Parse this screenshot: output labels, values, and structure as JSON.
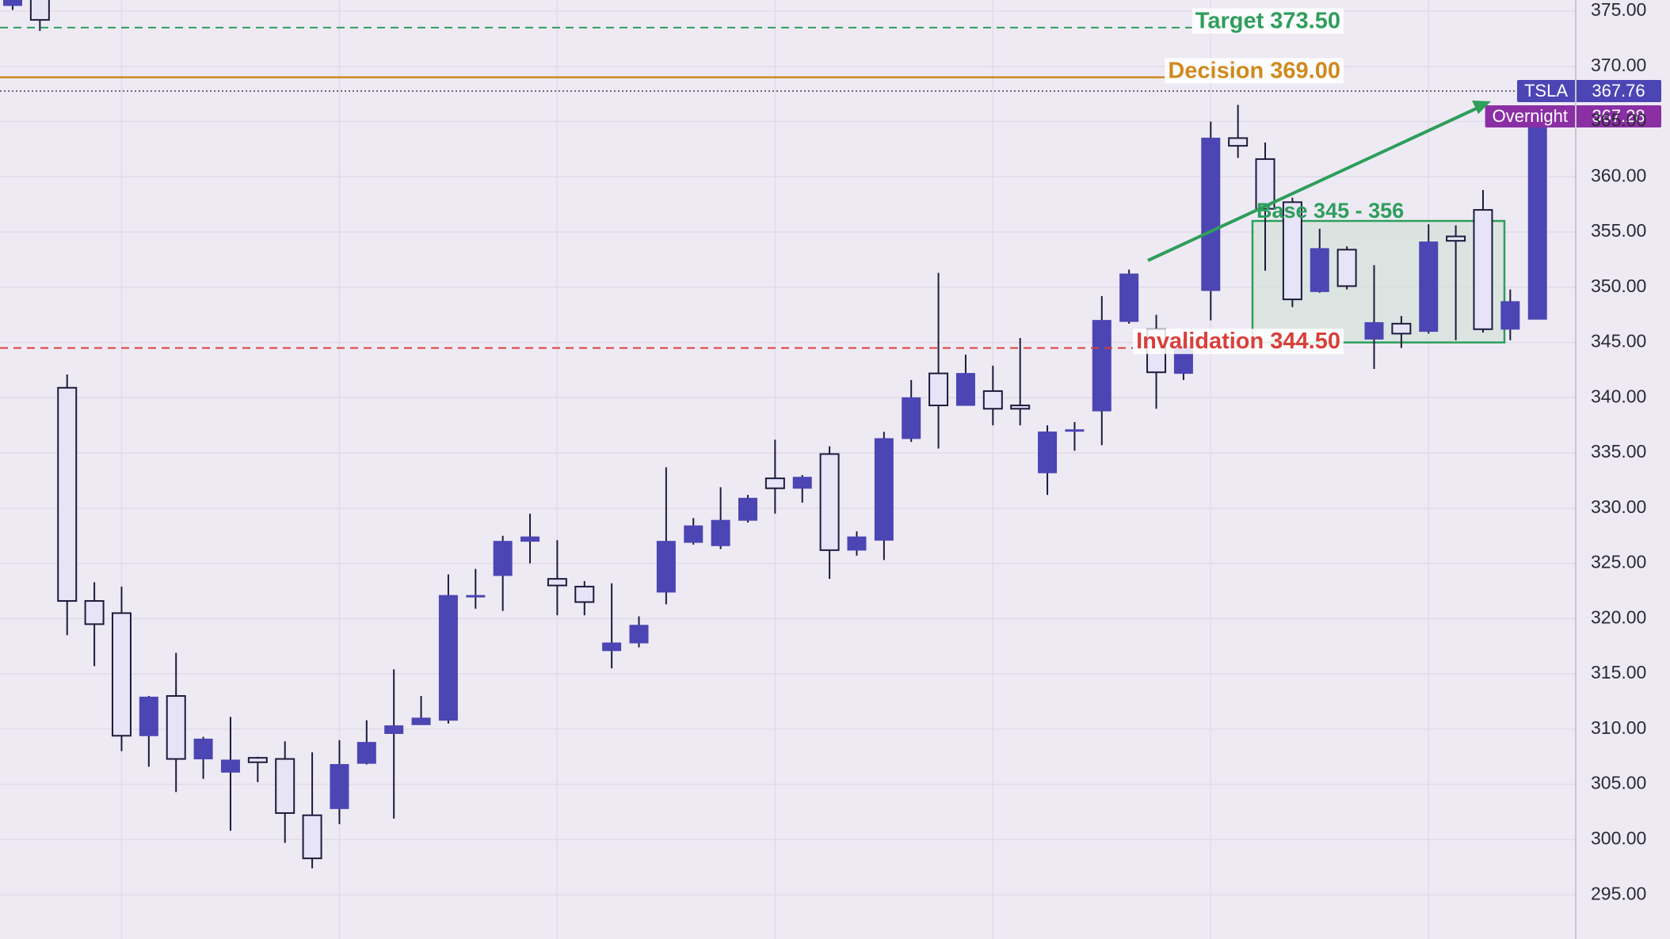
{
  "chart_data": {
    "type": "candlestick",
    "open": [
      375.5,
      376.5,
      340.9,
      321.6,
      320.5,
      309.4,
      313.0,
      307.3,
      306.1,
      307.4,
      307.3,
      302.2,
      302.8,
      306.9,
      309.6,
      310.4,
      310.8,
      322.0,
      323.9,
      327.0,
      323.6,
      322.9,
      317.1,
      317.8,
      322.4,
      326.9,
      326.6,
      328.9,
      332.7,
      331.8,
      334.9,
      326.2,
      327.1,
      336.3,
      342.2,
      339.3,
      340.6,
      339.3,
      333.2,
      337.0,
      338.8,
      346.9,
      346.2,
      342.2,
      349.7,
      363.5,
      361.6,
      357.7,
      349.6,
      353.4,
      345.3,
      346.7,
      346.0,
      354.6,
      357.0,
      346.2,
      347.1
    ],
    "high": [
      376.5,
      376.8,
      342.1,
      323.3,
      322.9,
      313.0,
      316.9,
      309.3,
      311.1,
      307.5,
      308.9,
      307.9,
      309.0,
      310.8,
      315.4,
      313.0,
      324.0,
      324.5,
      327.5,
      329.5,
      327.1,
      323.4,
      323.2,
      320.2,
      333.7,
      329.1,
      331.9,
      331.2,
      336.2,
      333.0,
      335.6,
      327.9,
      336.9,
      341.6,
      351.3,
      343.9,
      342.9,
      345.4,
      337.5,
      337.8,
      349.2,
      351.6,
      347.5,
      345.3,
      365.0,
      366.5,
      363.1,
      358.1,
      355.3,
      353.7,
      352.0,
      347.4,
      355.7,
      355.6,
      358.8,
      349.8,
      365.7
    ],
    "low": [
      375.1,
      373.2,
      318.5,
      315.7,
      308.0,
      306.6,
      304.3,
      305.5,
      300.8,
      305.2,
      299.7,
      297.4,
      301.4,
      306.8,
      301.9,
      310.4,
      310.5,
      320.9,
      320.7,
      325.0,
      320.3,
      320.3,
      315.5,
      317.4,
      321.3,
      326.7,
      326.3,
      328.7,
      329.5,
      330.5,
      323.6,
      325.7,
      325.3,
      336.0,
      335.4,
      339.3,
      337.5,
      337.5,
      331.2,
      335.2,
      335.7,
      346.7,
      339.0,
      341.6,
      347.0,
      361.7,
      351.5,
      348.2,
      349.5,
      349.8,
      342.6,
      344.5,
      345.8,
      345.2,
      345.9,
      345.2,
      347.1
    ],
    "close": [
      376.0,
      374.2,
      321.6,
      319.5,
      309.4,
      312.9,
      307.3,
      309.1,
      307.2,
      307.0,
      302.4,
      298.3,
      306.8,
      308.8,
      310.3,
      311.0,
      322.1,
      322.1,
      327.0,
      327.4,
      323.0,
      321.5,
      317.8,
      319.4,
      327.0,
      328.4,
      328.9,
      330.9,
      331.8,
      332.8,
      326.2,
      327.4,
      336.3,
      340.0,
      339.3,
      342.2,
      339.0,
      339.0,
      336.9,
      337.1,
      347.0,
      351.2,
      342.3,
      344.6,
      363.5,
      362.8,
      357.1,
      348.9,
      353.5,
      350.1,
      346.8,
      345.8,
      354.1,
      354.2,
      346.2,
      348.7,
      365.2
    ],
    "up_color": "#4c45b4",
    "down_color": "#e6e4f6",
    "outline_color": "#1c1b3c",
    "ylim": [
      291,
      376
    ],
    "yticks": [
      {
        "value": 295,
        "label": "295.00"
      },
      {
        "value": 300,
        "label": "300.00"
      },
      {
        "value": 305,
        "label": "305.00"
      },
      {
        "value": 310,
        "label": "310.00"
      },
      {
        "value": 315,
        "label": "315.00"
      },
      {
        "value": 320,
        "label": "320.00"
      },
      {
        "value": 325,
        "label": "325.00"
      },
      {
        "value": 330,
        "label": "330.00"
      },
      {
        "value": 335,
        "label": "335.00"
      },
      {
        "value": 340,
        "label": "340.00"
      },
      {
        "value": 345,
        "label": "345.00"
      },
      {
        "value": 350,
        "label": "350.00"
      },
      {
        "value": 355,
        "label": "355.00"
      },
      {
        "value": 360,
        "label": "360.00"
      },
      {
        "value": 365,
        "label": "365.00"
      },
      {
        "value": 370,
        "label": "370.00"
      },
      {
        "value": 375,
        "label": "375.00"
      }
    ],
    "grid": true,
    "levels": [
      {
        "label": "Target 373.50",
        "value": 373.5,
        "color": "#2e9e5b",
        "style": "dashed"
      },
      {
        "label": "Decision 369.00",
        "value": 369,
        "color": "#d08a1e",
        "style": "solid"
      },
      {
        "label": "Invalidation 344.50",
        "value": 344.5,
        "color": "#d9403a",
        "style": "dashed"
      }
    ],
    "base_zone": {
      "label": "Base 345 - 356",
      "low": 345,
      "high": 356,
      "color": "#2e9e5b"
    },
    "price_tags": [
      {
        "name": "TSLA",
        "value": 367.76,
        "color": "#4c45b4"
      },
      {
        "name": "Overnight",
        "value": 367.28,
        "color": "#8b2fa5"
      }
    ]
  }
}
